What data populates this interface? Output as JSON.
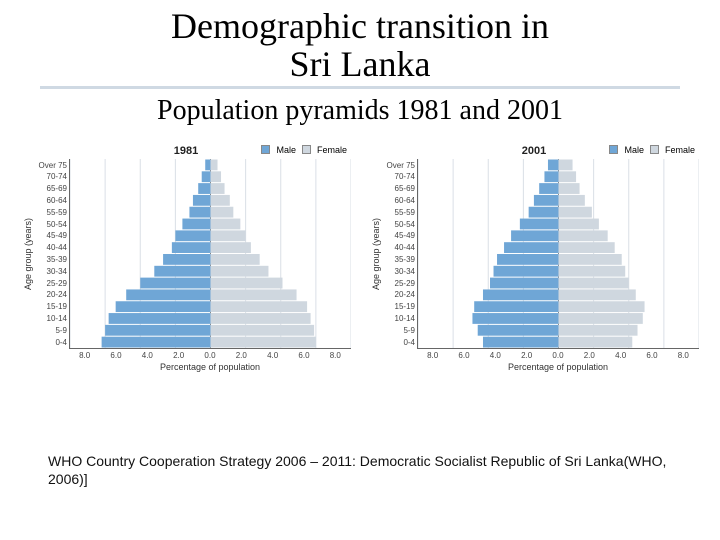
{
  "title_line1": "Demographic transition in",
  "title_line2": "Sri Lanka",
  "subtitle": "Population pyramids 1981 and 2001",
  "footer": "WHO Country Cooperation Strategy 2006 – 2011: Democratic Socialist Republic of Sri Lanka(WHO, 2006)]",
  "colors": {
    "male": "#6fa6d6",
    "female": "#cfd7df",
    "grid": "#dadfe6",
    "axis": "#666666",
    "rule": "#cfd9e3",
    "text": "#222222"
  },
  "legend": {
    "male": "Male",
    "female": "Female"
  },
  "age_labels": [
    "Over 75",
    "70-74",
    "65-69",
    "60-64",
    "55-59",
    "50-54",
    "45-49",
    "40-44",
    "35-39",
    "30-34",
    "25-29",
    "20-24",
    "15-19",
    "10-14",
    "5-9",
    "0-4"
  ],
  "x_ticks": [
    "8.0",
    "6.0",
    "4.0",
    "2.0",
    "0.0",
    "2.0",
    "4.0",
    "6.0",
    "8.0"
  ],
  "x_max": 8.0,
  "charts": [
    {
      "title": "1981",
      "ylabel": "Age group (years)",
      "xlabel": "Percentage of population",
      "male": [
        0.3,
        0.5,
        0.7,
        1.0,
        1.2,
        1.6,
        2.0,
        2.2,
        2.7,
        3.2,
        4.0,
        4.8,
        5.4,
        5.8,
        6.0,
        6.2
      ],
      "female": [
        0.4,
        0.6,
        0.8,
        1.1,
        1.3,
        1.7,
        2.0,
        2.3,
        2.8,
        3.3,
        4.1,
        4.9,
        5.5,
        5.7,
        5.9,
        6.0
      ]
    },
    {
      "title": "2001",
      "ylabel": "Age group (years)",
      "xlabel": "Percentage of population",
      "male": [
        0.6,
        0.8,
        1.1,
        1.4,
        1.7,
        2.2,
        2.7,
        3.1,
        3.5,
        3.7,
        3.9,
        4.3,
        4.8,
        4.9,
        4.6,
        4.3
      ],
      "female": [
        0.8,
        1.0,
        1.2,
        1.5,
        1.9,
        2.3,
        2.8,
        3.2,
        3.6,
        3.8,
        4.0,
        4.4,
        4.9,
        4.8,
        4.5,
        4.2
      ]
    }
  ],
  "style": {
    "title_fontsize": 36,
    "subtitle_fontsize": 28,
    "chart_title_fontsize": 11,
    "tick_fontsize": 8,
    "label_fontsize": 9,
    "footer_fontsize": 14,
    "bar_gap": 1
  }
}
